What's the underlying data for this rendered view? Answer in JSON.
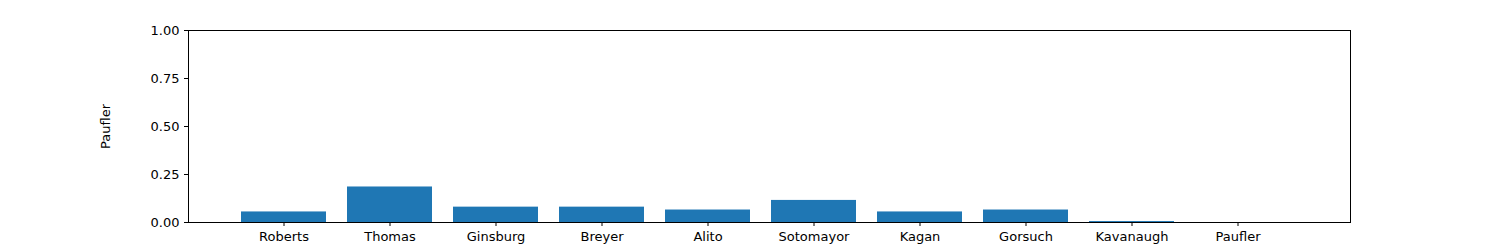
{
  "chart_data": {
    "type": "bar",
    "y_label": "Paufler",
    "categories": [
      "Roberts",
      "Thomas",
      "Ginsburg",
      "Breyer",
      "Alito",
      "Sotomayor",
      "Kagan",
      "Gorsuch",
      "Kavanaugh",
      "Paufler"
    ],
    "values": [
      0.055,
      0.185,
      0.08,
      0.08,
      0.065,
      0.115,
      0.055,
      0.065,
      0.005,
      0
    ],
    "color": "#1f77b4",
    "ylim": [
      0,
      1
    ],
    "yticks": [
      {
        "value": 0,
        "label": "0.00"
      },
      {
        "value": 0.25,
        "label": "0.25"
      },
      {
        "value": 0.5,
        "label": "0.50"
      },
      {
        "value": 0.75,
        "label": "0.75"
      },
      {
        "value": 1,
        "label": "1.00"
      }
    ],
    "grid": false
  }
}
